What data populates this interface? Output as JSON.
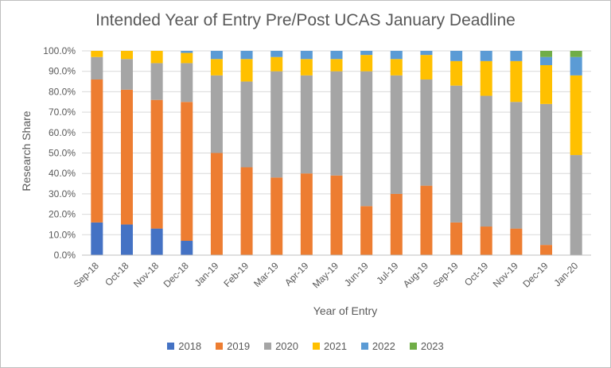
{
  "chart_data": {
    "type": "bar",
    "stacked": true,
    "title": "Intended Year of Entry Pre/Post UCAS January Deadline",
    "xlabel": "Year of Entry",
    "ylabel": "Research Share",
    "ylim": [
      0,
      100
    ],
    "y_ticks": [
      "0.0%",
      "10.0%",
      "20.0%",
      "30.0%",
      "40.0%",
      "50.0%",
      "60.0%",
      "70.0%",
      "80.0%",
      "90.0%",
      "100.0%"
    ],
    "grid": true,
    "legend_position": "bottom",
    "categories": [
      "Sep-18",
      "Oct-18",
      "Nov-18",
      "Dec-18",
      "Jan-19",
      "Feb-19",
      "Mar-19",
      "Apr-19",
      "May-19",
      "Jun-19",
      "Jul-19",
      "Aug-19",
      "Sep-19",
      "Oct-19",
      "Nov-19",
      "Dec-19",
      "Jan-20"
    ],
    "series": [
      {
        "name": "2018",
        "color": "#4472C4",
        "values": [
          16,
          15,
          13,
          7,
          0,
          0,
          0,
          0,
          0,
          0,
          0,
          0,
          0,
          0,
          0,
          0,
          0
        ]
      },
      {
        "name": "2019",
        "color": "#ED7D31",
        "values": [
          70,
          66,
          63,
          68,
          50,
          43,
          38,
          40,
          39,
          24,
          30,
          34,
          16,
          14,
          13,
          5,
          0
        ]
      },
      {
        "name": "2020",
        "color": "#A5A5A5",
        "values": [
          11,
          15,
          18,
          19,
          38,
          42,
          52,
          48,
          51,
          66,
          58,
          52,
          67,
          64,
          62,
          69,
          49
        ]
      },
      {
        "name": "2021",
        "color": "#FFC000",
        "values": [
          3,
          4,
          6,
          5,
          8,
          11,
          7,
          8,
          6,
          8,
          8,
          12,
          12,
          17,
          20,
          19,
          39
        ]
      },
      {
        "name": "2022",
        "color": "#5B9BD5",
        "values": [
          0,
          0,
          0,
          1,
          4,
          4,
          3,
          4,
          4,
          2,
          4,
          2,
          5,
          5,
          5,
          4,
          9
        ]
      },
      {
        "name": "2023",
        "color": "#70AD47",
        "values": [
          0,
          0,
          0,
          0,
          0,
          0,
          0,
          0,
          0,
          0,
          0,
          0,
          0,
          0,
          0,
          3,
          3
        ]
      }
    ]
  }
}
